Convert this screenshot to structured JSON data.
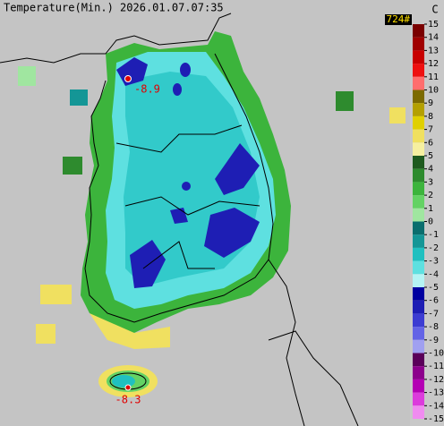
{
  "header": {
    "title": "Temperature(Min.) 2026.01.07.07:35",
    "station_count": "724#"
  },
  "legend": {
    "unit": "C",
    "ticks": [
      15,
      14,
      13,
      12,
      11,
      10,
      9,
      8,
      7,
      6,
      5,
      4,
      3,
      2,
      1,
      0,
      -1,
      -2,
      -3,
      -4,
      -5,
      -6,
      -7,
      -8,
      -9,
      -10,
      -11,
      -12,
      -13,
      -14,
      -15
    ],
    "colors": [
      "#7a0000",
      "#a00000",
      "#c80000",
      "#ee1010",
      "#ff6e6e",
      "#7c6a00",
      "#b4a000",
      "#e0d000",
      "#f0e060",
      "#f6f0a0",
      "#1e5a1e",
      "#2e8b2e",
      "#3cb43c",
      "#64d264",
      "#a0e6a0",
      "#0a6e6e",
      "#149696",
      "#20c0c0",
      "#5ee0e0",
      "#b4f4f4",
      "#0000a0",
      "#1e1eb4",
      "#3c3cd2",
      "#6464e6",
      "#a0a0f0",
      "#5a005a",
      "#8c008c",
      "#b400b4",
      "#dc3cdc",
      "#f08cf0"
    ]
  },
  "points": [
    {
      "label": "-8.9"
    },
    {
      "label": "-8.3"
    }
  ]
}
